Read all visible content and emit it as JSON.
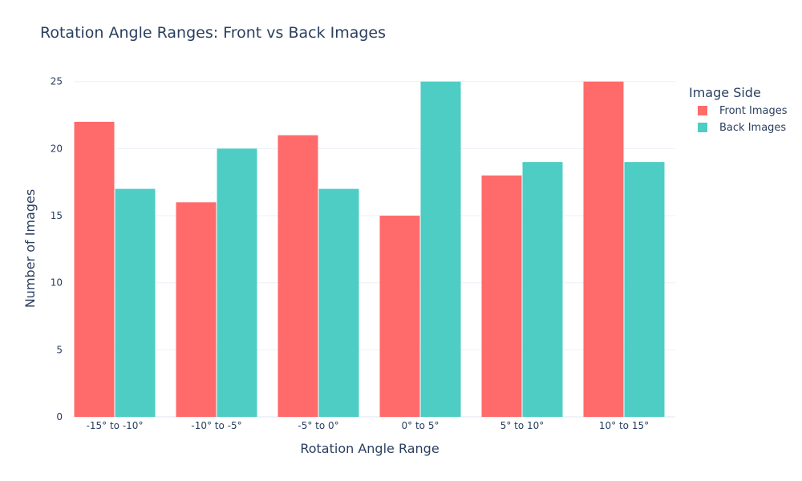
{
  "chart_data": {
    "type": "bar",
    "title": "Rotation Angle Ranges: Front vs Back Images",
    "xlabel": "Rotation Angle Range",
    "ylabel": "Number of Images",
    "categories": [
      "-15° to -10°",
      "-10° to -5°",
      "-5° to 0°",
      "0° to 5°",
      "5° to 10°",
      "10° to 15°"
    ],
    "series": [
      {
        "name": "Front Images",
        "values": [
          22,
          16,
          21,
          15,
          18,
          25
        ],
        "color": "#ff6b6b"
      },
      {
        "name": "Back Images",
        "values": [
          17,
          20,
          17,
          25,
          19,
          19
        ],
        "color": "#4ecdc4"
      }
    ],
    "ylim": [
      0,
      26.3
    ],
    "yticks": [
      0,
      5,
      10,
      15,
      20,
      25
    ],
    "legend_title": "Image Side",
    "legend_position": "top-right",
    "grid": true
  }
}
